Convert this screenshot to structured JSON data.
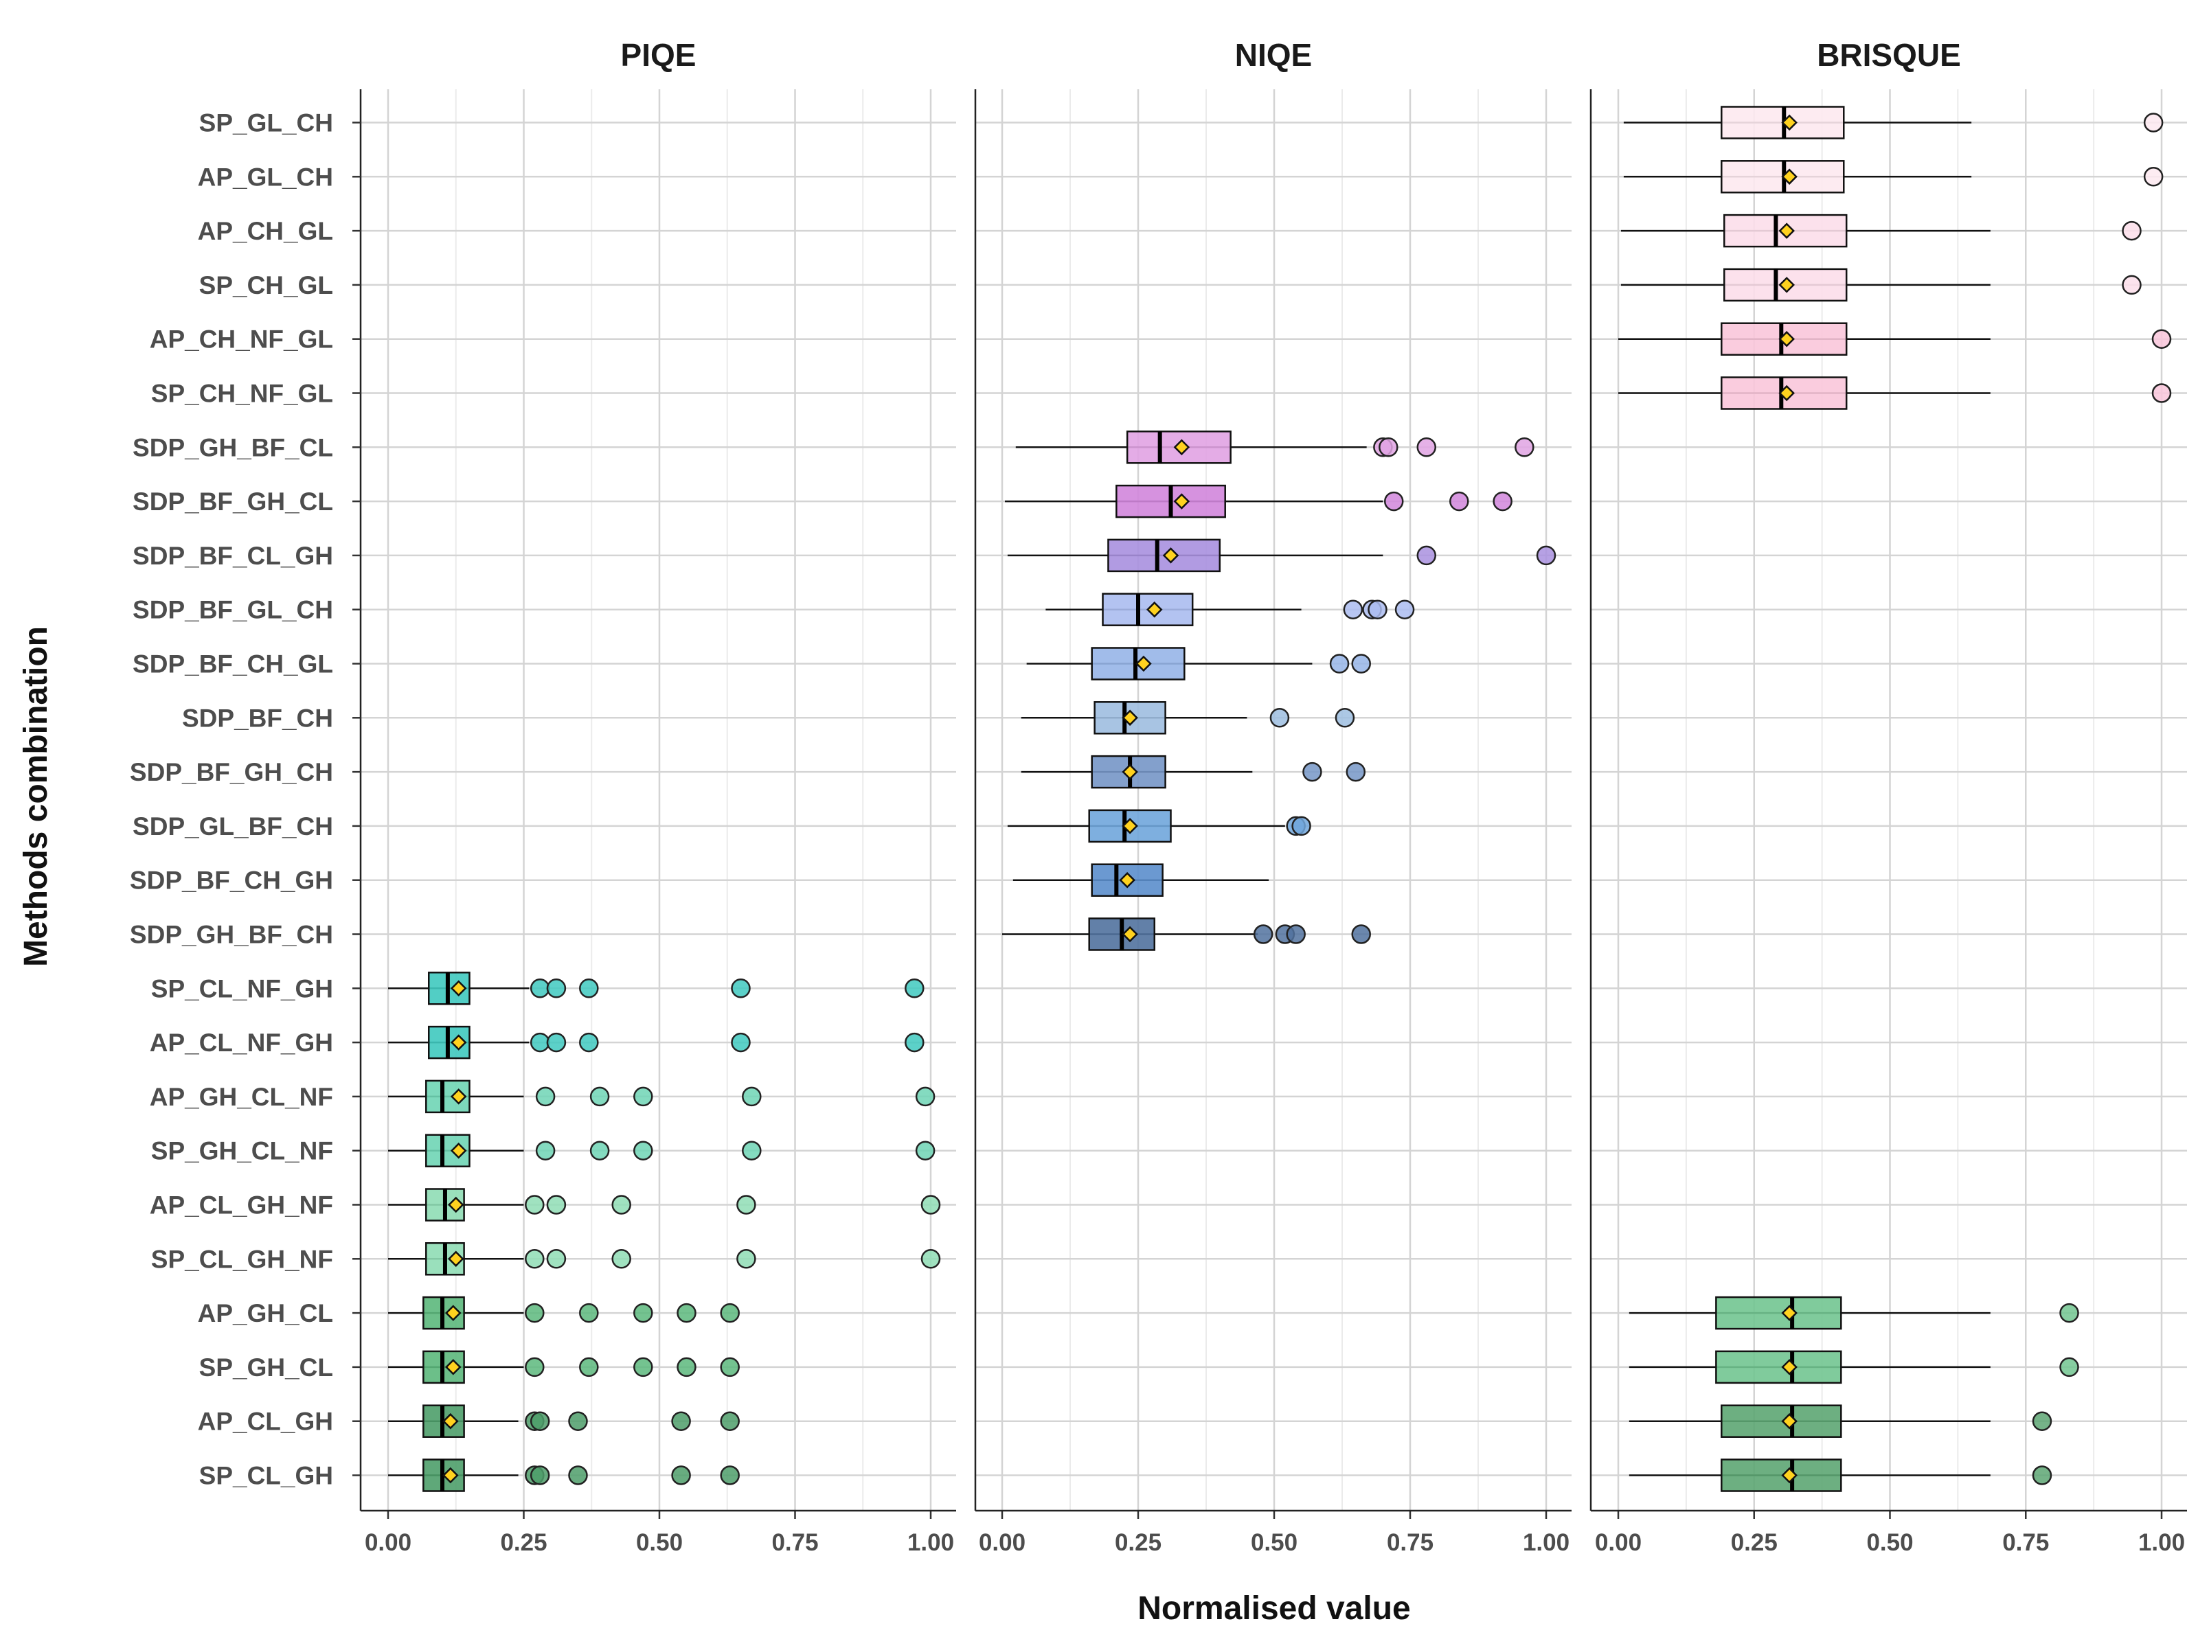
{
  "chart_data": {
    "type": "boxplot",
    "title": "",
    "xlabel": "Normalised value",
    "ylabel": "Methods combination",
    "xlim": [
      0,
      1
    ],
    "x_ticks": [
      "0.00",
      "0.25",
      "0.50",
      "0.75",
      "1.00"
    ],
    "grid": true,
    "mean_marker": {
      "shape": "diamond",
      "color": "#FFD21F"
    },
    "categories": [
      "SP_GL_CH",
      "AP_GL_CH",
      "AP_CH_GL",
      "SP_CH_GL",
      "AP_CH_NF_GL",
      "SP_CH_NF_GL",
      "SDP_GH_BF_CL",
      "SDP_BF_GH_CL",
      "SDP_BF_CL_GH",
      "SDP_BF_GL_CH",
      "SDP_BF_CH_GL",
      "SDP_BF_CH",
      "SDP_BF_GH_CH",
      "SDP_GL_BF_CH",
      "SDP_BF_CH_GH",
      "SDP_GH_BF_CH",
      "SP_CL_NF_GH",
      "AP_CL_NF_GH",
      "AP_GH_CL_NF",
      "SP_GH_CL_NF",
      "AP_CL_GH_NF",
      "SP_CL_GH_NF",
      "AP_GH_CL",
      "SP_GH_CL",
      "AP_CL_GH",
      "SP_CL_GH"
    ],
    "facets": [
      {
        "name": "PIQE",
        "boxes": [
          {
            "category": "SP_CL_NF_GH",
            "color": "#3FC9BF",
            "min": 0.0,
            "q1": 0.075,
            "median": 0.11,
            "q3": 0.15,
            "max": 0.26,
            "mean": 0.13,
            "outliers": [
              0.28,
              0.31,
              0.37,
              0.65,
              0.97
            ]
          },
          {
            "category": "AP_CL_NF_GH",
            "color": "#3FC9BF",
            "min": 0.0,
            "q1": 0.075,
            "median": 0.11,
            "q3": 0.15,
            "max": 0.26,
            "mean": 0.13,
            "outliers": [
              0.28,
              0.31,
              0.37,
              0.65,
              0.97
            ]
          },
          {
            "category": "AP_GH_CL_NF",
            "color": "#6FD5B5",
            "min": 0.0,
            "q1": 0.07,
            "median": 0.1,
            "q3": 0.15,
            "max": 0.25,
            "mean": 0.13,
            "outliers": [
              0.29,
              0.39,
              0.47,
              0.67,
              0.99
            ]
          },
          {
            "category": "SP_GH_CL_NF",
            "color": "#6FD5B5",
            "min": 0.0,
            "q1": 0.07,
            "median": 0.1,
            "q3": 0.15,
            "max": 0.25,
            "mean": 0.13,
            "outliers": [
              0.29,
              0.39,
              0.47,
              0.67,
              0.99
            ]
          },
          {
            "category": "AP_CL_GH_NF",
            "color": "#8FDDB5",
            "min": 0.0,
            "q1": 0.07,
            "median": 0.105,
            "q3": 0.14,
            "max": 0.25,
            "mean": 0.125,
            "outliers": [
              0.27,
              0.31,
              0.43,
              0.66,
              1.0
            ]
          },
          {
            "category": "SP_CL_GH_NF",
            "color": "#8FDDB5",
            "min": 0.0,
            "q1": 0.07,
            "median": 0.105,
            "q3": 0.14,
            "max": 0.25,
            "mean": 0.125,
            "outliers": [
              0.27,
              0.31,
              0.43,
              0.66,
              1.0
            ]
          },
          {
            "category": "AP_GH_CL",
            "color": "#5CB87C",
            "min": 0.0,
            "q1": 0.065,
            "median": 0.1,
            "q3": 0.14,
            "max": 0.25,
            "mean": 0.12,
            "outliers": [
              0.27,
              0.37,
              0.47,
              0.55,
              0.63
            ]
          },
          {
            "category": "SP_GH_CL",
            "color": "#5CB87C",
            "min": 0.0,
            "q1": 0.065,
            "median": 0.1,
            "q3": 0.14,
            "max": 0.25,
            "mean": 0.12,
            "outliers": [
              0.27,
              0.37,
              0.47,
              0.55,
              0.63
            ]
          },
          {
            "category": "AP_CL_GH",
            "color": "#4E9E6A",
            "min": 0.0,
            "q1": 0.065,
            "median": 0.1,
            "q3": 0.14,
            "max": 0.24,
            "mean": 0.115,
            "outliers": [
              0.27,
              0.28,
              0.35,
              0.54,
              0.63
            ]
          },
          {
            "category": "SP_CL_GH",
            "color": "#4E9E6A",
            "min": 0.0,
            "q1": 0.065,
            "median": 0.1,
            "q3": 0.14,
            "max": 0.24,
            "mean": 0.115,
            "outliers": [
              0.27,
              0.28,
              0.35,
              0.54,
              0.63
            ]
          }
        ]
      },
      {
        "name": "NIQE",
        "boxes": [
          {
            "category": "SDP_GH_BF_CL",
            "color": "#E1A3E3",
            "min": 0.025,
            "q1": 0.23,
            "median": 0.29,
            "q3": 0.42,
            "max": 0.67,
            "mean": 0.33,
            "outliers": [
              0.7,
              0.71,
              0.78,
              0.96
            ]
          },
          {
            "category": "SDP_BF_GH_CL",
            "color": "#D186DC",
            "min": 0.005,
            "q1": 0.21,
            "median": 0.31,
            "q3": 0.41,
            "max": 0.7,
            "mean": 0.33,
            "outliers": [
              0.72,
              0.84,
              0.92
            ]
          },
          {
            "category": "SDP_BF_CL_GH",
            "color": "#A990DF",
            "min": 0.01,
            "q1": 0.195,
            "median": 0.285,
            "q3": 0.4,
            "max": 0.7,
            "mean": 0.31,
            "outliers": [
              0.78,
              1.0
            ]
          },
          {
            "category": "SDP_BF_GL_CH",
            "color": "#ABBCF0",
            "min": 0.08,
            "q1": 0.185,
            "median": 0.25,
            "q3": 0.35,
            "max": 0.55,
            "mean": 0.28,
            "outliers": [
              0.645,
              0.68,
              0.69,
              0.74
            ]
          },
          {
            "category": "SDP_BF_CH_GL",
            "color": "#97B5E8",
            "min": 0.045,
            "q1": 0.165,
            "median": 0.245,
            "q3": 0.335,
            "max": 0.57,
            "mean": 0.26,
            "outliers": [
              0.62,
              0.66
            ]
          },
          {
            "category": "SDP_BF_CH",
            "color": "#9EBEE0",
            "min": 0.035,
            "q1": 0.17,
            "median": 0.225,
            "q3": 0.3,
            "max": 0.45,
            "mean": 0.235,
            "outliers": [
              0.51,
              0.63
            ]
          },
          {
            "category": "SDP_BF_GH_CH",
            "color": "#7696C7",
            "min": 0.035,
            "q1": 0.165,
            "median": 0.235,
            "q3": 0.3,
            "max": 0.46,
            "mean": 0.235,
            "outliers": [
              0.57,
              0.65
            ]
          },
          {
            "category": "SDP_GL_BF_CH",
            "color": "#70A6DC",
            "min": 0.01,
            "q1": 0.16,
            "median": 0.225,
            "q3": 0.31,
            "max": 0.52,
            "mean": 0.235,
            "outliers": [
              0.54,
              0.55
            ]
          },
          {
            "category": "SDP_BF_CH_GH",
            "color": "#5B8ECC",
            "min": 0.02,
            "q1": 0.165,
            "median": 0.21,
            "q3": 0.295,
            "max": 0.49,
            "mean": 0.23,
            "outliers": []
          },
          {
            "category": "SDP_GH_BF_CH",
            "color": "#51729F",
            "min": 0.0,
            "q1": 0.16,
            "median": 0.22,
            "q3": 0.28,
            "max": 0.47,
            "mean": 0.235,
            "outliers": [
              0.48,
              0.52,
              0.54,
              0.66
            ]
          }
        ]
      },
      {
        "name": "BRISQUE",
        "boxes": [
          {
            "category": "SP_GL_CH",
            "color": "#FDE9F0",
            "min": 0.01,
            "q1": 0.19,
            "median": 0.305,
            "q3": 0.415,
            "max": 0.65,
            "mean": 0.315,
            "outliers": [
              0.985
            ]
          },
          {
            "category": "AP_GL_CH",
            "color": "#FDE9F0",
            "min": 0.01,
            "q1": 0.19,
            "median": 0.305,
            "q3": 0.415,
            "max": 0.65,
            "mean": 0.315,
            "outliers": [
              0.985
            ]
          },
          {
            "category": "AP_CH_GL",
            "color": "#FCDEEA",
            "min": 0.005,
            "q1": 0.195,
            "median": 0.29,
            "q3": 0.42,
            "max": 0.685,
            "mean": 0.31,
            "outliers": [
              0.945
            ]
          },
          {
            "category": "SP_CH_GL",
            "color": "#FCDEEA",
            "min": 0.005,
            "q1": 0.195,
            "median": 0.29,
            "q3": 0.42,
            "max": 0.685,
            "mean": 0.31,
            "outliers": [
              0.945
            ]
          },
          {
            "category": "AP_CH_NF_GL",
            "color": "#F9C6DA",
            "min": 0.0,
            "q1": 0.19,
            "median": 0.3,
            "q3": 0.42,
            "max": 0.685,
            "mean": 0.31,
            "outliers": [
              1.0
            ]
          },
          {
            "category": "SP_CH_NF_GL",
            "color": "#F9C6DA",
            "min": 0.0,
            "q1": 0.19,
            "median": 0.3,
            "q3": 0.42,
            "max": 0.685,
            "mean": 0.31,
            "outliers": [
              1.0
            ]
          },
          {
            "category": "AP_GH_CL",
            "color": "#72C591",
            "min": 0.02,
            "q1": 0.18,
            "median": 0.32,
            "q3": 0.41,
            "max": 0.685,
            "mean": 0.315,
            "outliers": [
              0.83
            ]
          },
          {
            "category": "SP_GH_CL",
            "color": "#72C591",
            "min": 0.02,
            "q1": 0.18,
            "median": 0.32,
            "q3": 0.41,
            "max": 0.685,
            "mean": 0.315,
            "outliers": [
              0.83
            ]
          },
          {
            "category": "AP_CL_GH",
            "color": "#5DA673",
            "min": 0.02,
            "q1": 0.19,
            "median": 0.32,
            "q3": 0.41,
            "max": 0.685,
            "mean": 0.315,
            "outliers": [
              0.78
            ]
          },
          {
            "category": "SP_CL_GH",
            "color": "#5DA673",
            "min": 0.02,
            "q1": 0.19,
            "median": 0.32,
            "q3": 0.41,
            "max": 0.685,
            "mean": 0.315,
            "outliers": [
              0.78
            ]
          }
        ]
      }
    ]
  }
}
